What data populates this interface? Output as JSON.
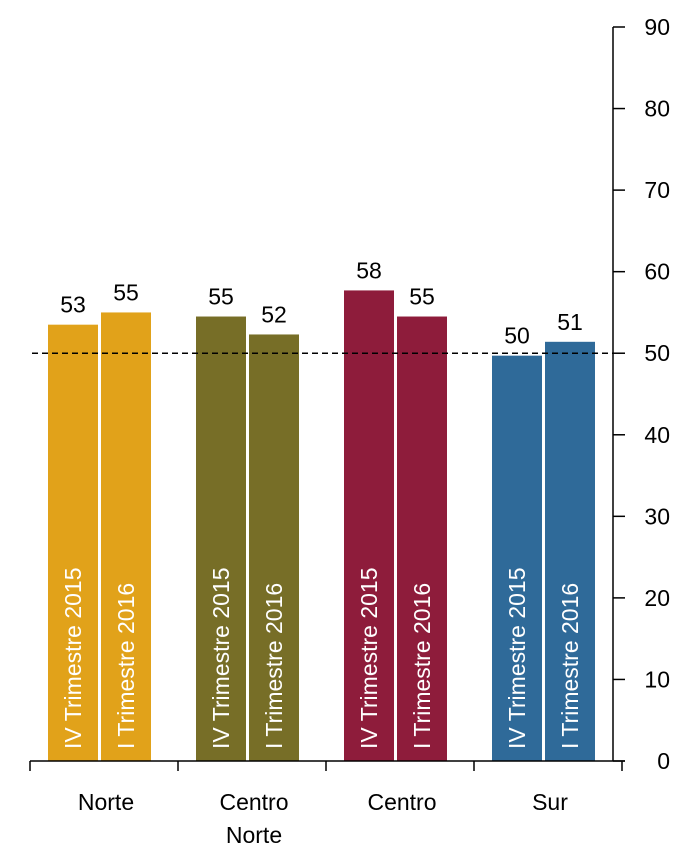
{
  "chart_data": {
    "type": "bar",
    "categories": [
      {
        "label_lines": [
          "Norte"
        ],
        "color": "#E1A21A"
      },
      {
        "label_lines": [
          "Centro",
          "Norte"
        ],
        "color": "#776E27"
      },
      {
        "label_lines": [
          "Centro"
        ],
        "color": "#8E1C3B"
      },
      {
        "label_lines": [
          "Sur"
        ],
        "color": "#2F6A99"
      }
    ],
    "series": [
      {
        "name": "IV Trimestre  2015",
        "values": [
          53.5,
          54.5,
          57.7,
          49.7
        ],
        "labels": [
          "53",
          "55",
          "58",
          "50"
        ]
      },
      {
        "name": "I Trimestre  2016",
        "values": [
          55.0,
          52.3,
          54.5,
          51.4
        ],
        "labels": [
          "55",
          "52",
          "55",
          "51"
        ]
      }
    ],
    "y_axis": {
      "position": "right",
      "ylim": [
        0,
        90
      ],
      "ticks": [
        "0",
        "10",
        "20",
        "30",
        "40",
        "50",
        "60",
        "70",
        "80",
        "90"
      ]
    },
    "reference_line": {
      "value": 50,
      "style": "dashed"
    },
    "grid": false,
    "legend": "none (series names printed inside bars)"
  }
}
